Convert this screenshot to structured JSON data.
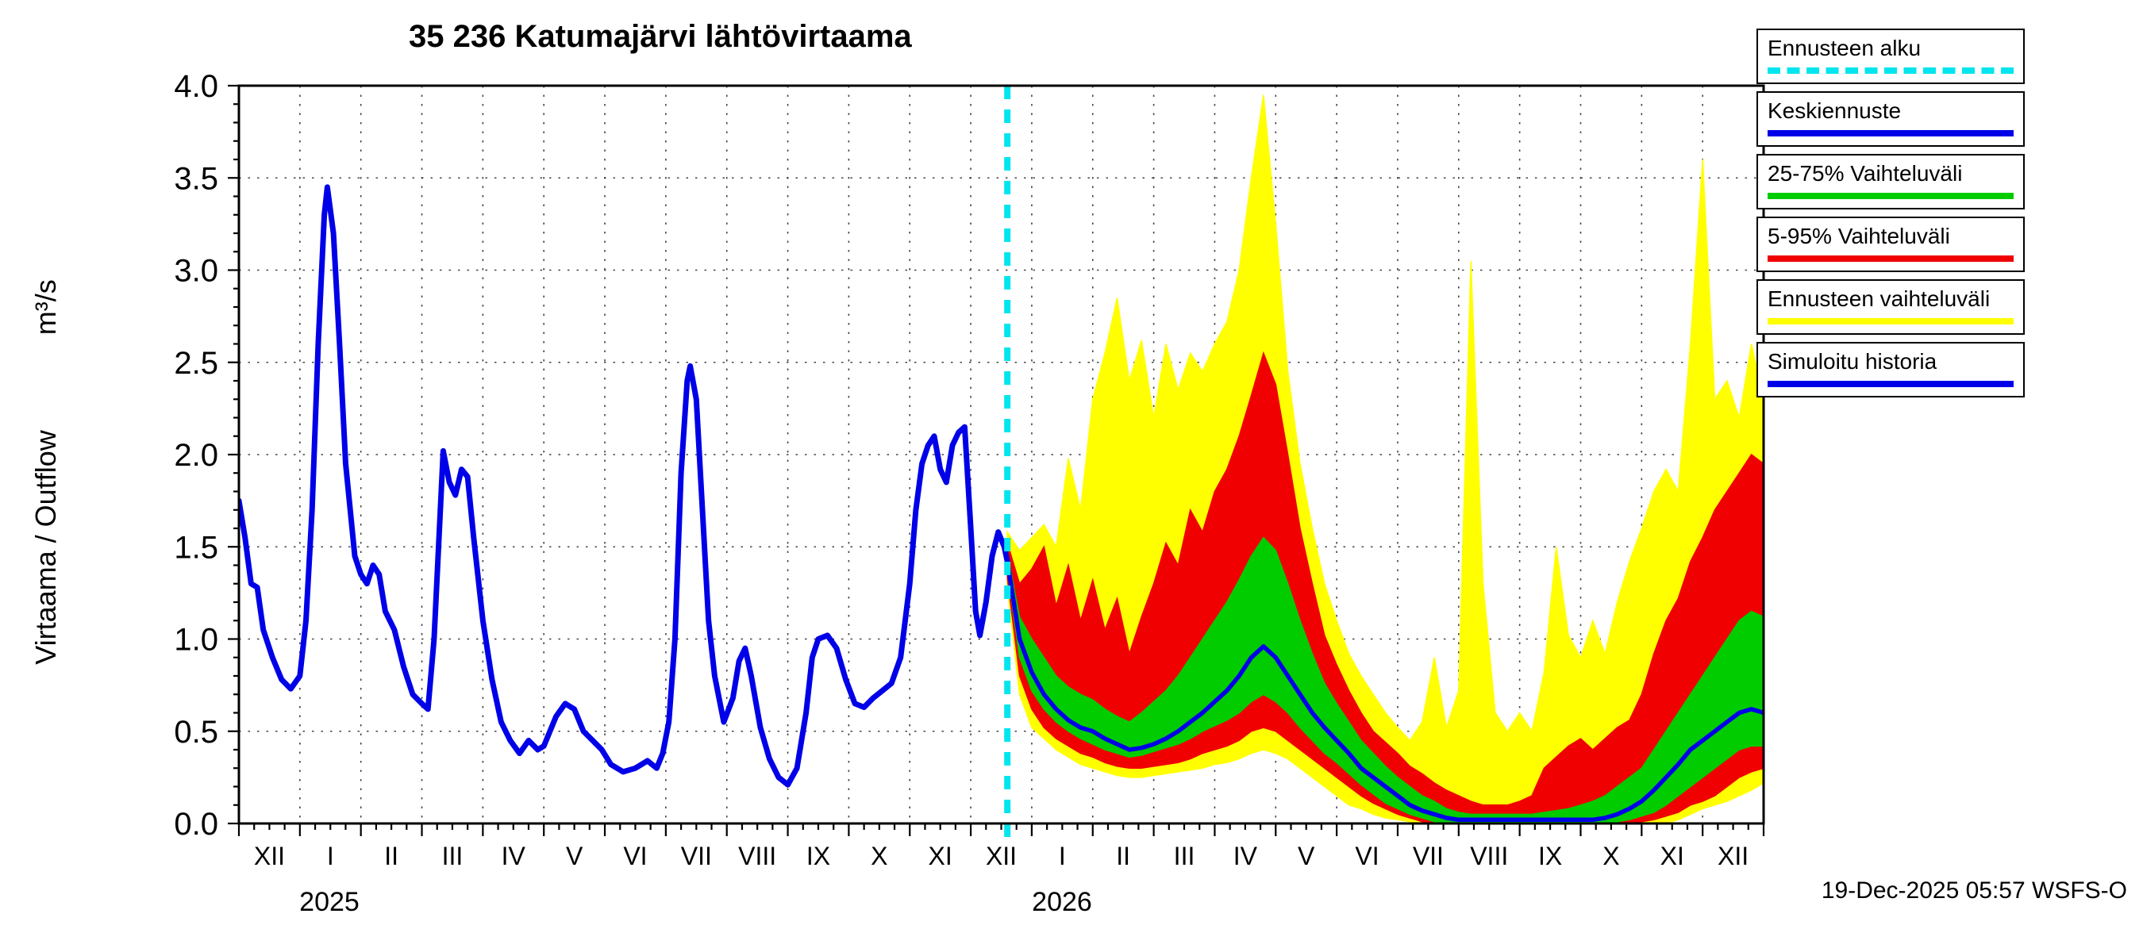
{
  "title": "35 236 Katumajärvi lähtövirtaama",
  "y_axis": {
    "label": "Virtaama / Outflow",
    "unit": "m³/s"
  },
  "years": [
    "2025",
    "2026"
  ],
  "timestamp": "19-Dec-2025 05:57 WSFS-O",
  "legend": {
    "items": [
      {
        "label": "Ennusteen alku",
        "color": "#00e5ee",
        "style": "dashed"
      },
      {
        "label": "Keskiennuste",
        "color": "#0000e8",
        "style": "solid"
      },
      {
        "label": "25-75% Vaihteluväli",
        "color": "#00cc00",
        "style": "solid"
      },
      {
        "label": "5-95% Vaihteluväli",
        "color": "#f00000",
        "style": "solid"
      },
      {
        "label": "Ennusteen vaihteluväli",
        "color": "#ffff00",
        "style": "solid"
      },
      {
        "label": "Simuloitu historia",
        "color": "#0000e8",
        "style": "solid"
      }
    ]
  },
  "chart_data": {
    "type": "line",
    "title": "35 236 Katumajärvi lähtövirtaama",
    "xlabel": "",
    "ylabel": "Virtaama / Outflow (m³/s)",
    "x_unit": "months since 2024-12-01",
    "xlim": [
      0,
      25
    ],
    "ylim": [
      0,
      4
    ],
    "grid": true,
    "legend_position": "top-right",
    "forecast_start_x": 12.6,
    "x_tick_labels": [
      "XII",
      "I",
      "II",
      "III",
      "IV",
      "V",
      "VI",
      "VII",
      "VIII",
      "IX",
      "X",
      "XI",
      "XII",
      "I",
      "II",
      "III",
      "IV",
      "V",
      "VI",
      "VII",
      "VIII",
      "IX",
      "X",
      "XI",
      "XII"
    ],
    "y_ticks": [
      0.0,
      0.5,
      1.0,
      1.5,
      2.0,
      2.5,
      3.0,
      3.5,
      4.0
    ],
    "colors": {
      "history": "#0000e8",
      "median": "#0000e8",
      "band_25_75": "#00cc00",
      "band_5_95": "#f00000",
      "band_full": "#ffff00",
      "forecast_start": "#00e5ee"
    },
    "history": {
      "name": "Simuloitu historia",
      "x": [
        0.0,
        0.1,
        0.2,
        0.3,
        0.4,
        0.55,
        0.7,
        0.85,
        1.0,
        1.1,
        1.2,
        1.3,
        1.4,
        1.45,
        1.55,
        1.65,
        1.75,
        1.9,
        2.0,
        2.1,
        2.2,
        2.3,
        2.4,
        2.55,
        2.7,
        2.85,
        3.0,
        3.1,
        3.2,
        3.35,
        3.45,
        3.55,
        3.65,
        3.75,
        3.85,
        4.0,
        4.15,
        4.3,
        4.45,
        4.6,
        4.75,
        4.9,
        5.0,
        5.2,
        5.35,
        5.5,
        5.65,
        5.8,
        5.95,
        6.1,
        6.3,
        6.5,
        6.7,
        6.85,
        6.95,
        7.05,
        7.15,
        7.25,
        7.35,
        7.4,
        7.5,
        7.6,
        7.7,
        7.8,
        7.95,
        8.1,
        8.2,
        8.3,
        8.4,
        8.55,
        8.7,
        8.85,
        9.0,
        9.15,
        9.3,
        9.4,
        9.5,
        9.65,
        9.8,
        9.95,
        10.1,
        10.25,
        10.4,
        10.55,
        10.7,
        10.85,
        11.0,
        11.1,
        11.2,
        11.3,
        11.4,
        11.5,
        11.6,
        11.7,
        11.8,
        11.9,
        12.0,
        12.08,
        12.15,
        12.25,
        12.35,
        12.45,
        12.55,
        12.6
      ],
      "y": [
        1.75,
        1.55,
        1.3,
        1.28,
        1.05,
        0.9,
        0.78,
        0.73,
        0.8,
        1.1,
        1.7,
        2.6,
        3.3,
        3.45,
        3.2,
        2.6,
        1.95,
        1.45,
        1.35,
        1.3,
        1.4,
        1.35,
        1.15,
        1.05,
        0.85,
        0.7,
        0.65,
        0.62,
        1.0,
        2.02,
        1.85,
        1.78,
        1.92,
        1.88,
        1.55,
        1.1,
        0.78,
        0.55,
        0.45,
        0.38,
        0.45,
        0.4,
        0.42,
        0.58,
        0.65,
        0.62,
        0.5,
        0.45,
        0.4,
        0.32,
        0.28,
        0.3,
        0.34,
        0.3,
        0.38,
        0.55,
        1.0,
        1.9,
        2.4,
        2.48,
        2.3,
        1.7,
        1.1,
        0.8,
        0.55,
        0.68,
        0.88,
        0.95,
        0.8,
        0.52,
        0.35,
        0.25,
        0.21,
        0.3,
        0.6,
        0.9,
        1.0,
        1.02,
        0.95,
        0.78,
        0.65,
        0.63,
        0.68,
        0.72,
        0.76,
        0.9,
        1.3,
        1.7,
        1.95,
        2.05,
        2.1,
        1.92,
        1.85,
        2.05,
        2.12,
        2.15,
        1.6,
        1.15,
        1.02,
        1.2,
        1.45,
        1.58,
        1.5,
        1.42
      ]
    },
    "forecast": {
      "x": [
        12.6,
        12.8,
        13.0,
        13.2,
        13.4,
        13.6,
        13.8,
        14.0,
        14.2,
        14.4,
        14.6,
        14.8,
        15.0,
        15.2,
        15.4,
        15.6,
        15.8,
        16.0,
        16.2,
        16.4,
        16.6,
        16.8,
        17.0,
        17.2,
        17.4,
        17.6,
        17.8,
        18.0,
        18.2,
        18.4,
        18.6,
        18.8,
        19.0,
        19.2,
        19.4,
        19.6,
        19.8,
        20.0,
        20.2,
        20.4,
        20.6,
        20.8,
        21.0,
        21.2,
        21.4,
        21.6,
        21.8,
        22.0,
        22.2,
        22.4,
        22.6,
        22.8,
        23.0,
        23.2,
        23.4,
        23.6,
        23.8,
        24.0,
        24.2,
        24.4,
        24.6,
        24.8,
        25.0
      ],
      "median": [
        1.42,
        1.0,
        0.82,
        0.7,
        0.62,
        0.56,
        0.52,
        0.5,
        0.46,
        0.43,
        0.4,
        0.41,
        0.43,
        0.46,
        0.5,
        0.55,
        0.6,
        0.66,
        0.72,
        0.8,
        0.9,
        0.96,
        0.9,
        0.8,
        0.7,
        0.6,
        0.52,
        0.45,
        0.38,
        0.3,
        0.25,
        0.2,
        0.15,
        0.1,
        0.07,
        0.05,
        0.03,
        0.02,
        0.02,
        0.02,
        0.02,
        0.02,
        0.02,
        0.02,
        0.02,
        0.02,
        0.02,
        0.02,
        0.02,
        0.03,
        0.05,
        0.08,
        0.12,
        0.18,
        0.25,
        0.32,
        0.4,
        0.45,
        0.5,
        0.55,
        0.6,
        0.62,
        0.6
      ],
      "p25": [
        1.38,
        0.9,
        0.72,
        0.62,
        0.55,
        0.5,
        0.46,
        0.43,
        0.4,
        0.38,
        0.36,
        0.37,
        0.39,
        0.41,
        0.43,
        0.46,
        0.5,
        0.53,
        0.56,
        0.6,
        0.66,
        0.7,
        0.66,
        0.6,
        0.52,
        0.45,
        0.38,
        0.33,
        0.27,
        0.21,
        0.16,
        0.11,
        0.08,
        0.05,
        0.03,
        0.01,
        0.0,
        0.0,
        0.0,
        0.0,
        0.0,
        0.0,
        0.0,
        0.0,
        0.0,
        0.0,
        0.0,
        0.0,
        0.0,
        0.0,
        0.01,
        0.02,
        0.04,
        0.06,
        0.1,
        0.15,
        0.2,
        0.25,
        0.3,
        0.35,
        0.4,
        0.42,
        0.42
      ],
      "p75": [
        1.46,
        1.12,
        1.0,
        0.9,
        0.8,
        0.74,
        0.7,
        0.67,
        0.62,
        0.58,
        0.55,
        0.6,
        0.66,
        0.72,
        0.8,
        0.9,
        1.0,
        1.1,
        1.2,
        1.32,
        1.45,
        1.55,
        1.48,
        1.3,
        1.1,
        0.92,
        0.76,
        0.65,
        0.55,
        0.45,
        0.38,
        0.31,
        0.25,
        0.2,
        0.15,
        0.12,
        0.08,
        0.06,
        0.05,
        0.05,
        0.05,
        0.05,
        0.05,
        0.05,
        0.06,
        0.07,
        0.08,
        0.1,
        0.12,
        0.15,
        0.2,
        0.25,
        0.3,
        0.4,
        0.5,
        0.6,
        0.7,
        0.8,
        0.9,
        1.0,
        1.1,
        1.15,
        1.12
      ],
      "p5": [
        1.33,
        0.8,
        0.62,
        0.52,
        0.46,
        0.42,
        0.38,
        0.36,
        0.33,
        0.31,
        0.3,
        0.3,
        0.31,
        0.32,
        0.33,
        0.35,
        0.38,
        0.4,
        0.42,
        0.45,
        0.5,
        0.52,
        0.5,
        0.45,
        0.4,
        0.35,
        0.3,
        0.25,
        0.2,
        0.15,
        0.11,
        0.08,
        0.05,
        0.03,
        0.01,
        0.0,
        0.0,
        0.0,
        0.0,
        0.0,
        0.0,
        0.0,
        0.0,
        0.0,
        0.0,
        0.0,
        0.0,
        0.0,
        0.0,
        0.0,
        0.0,
        0.0,
        0.01,
        0.02,
        0.04,
        0.06,
        0.1,
        0.12,
        0.15,
        0.2,
        0.25,
        0.28,
        0.3
      ],
      "p95": [
        1.52,
        1.3,
        1.38,
        1.5,
        1.18,
        1.4,
        1.1,
        1.32,
        1.05,
        1.22,
        0.92,
        1.12,
        1.3,
        1.52,
        1.4,
        1.7,
        1.58,
        1.8,
        1.92,
        2.1,
        2.32,
        2.55,
        2.38,
        2.0,
        1.6,
        1.3,
        1.02,
        0.86,
        0.72,
        0.6,
        0.5,
        0.44,
        0.38,
        0.31,
        0.27,
        0.22,
        0.18,
        0.15,
        0.12,
        0.1,
        0.1,
        0.1,
        0.12,
        0.15,
        0.3,
        0.36,
        0.42,
        0.46,
        0.4,
        0.46,
        0.52,
        0.56,
        0.7,
        0.92,
        1.1,
        1.22,
        1.42,
        1.55,
        1.7,
        1.8,
        1.9,
        2.0,
        1.95
      ],
      "min": [
        1.28,
        0.7,
        0.52,
        0.46,
        0.4,
        0.36,
        0.32,
        0.3,
        0.28,
        0.26,
        0.25,
        0.25,
        0.26,
        0.27,
        0.28,
        0.29,
        0.3,
        0.32,
        0.33,
        0.35,
        0.38,
        0.4,
        0.38,
        0.35,
        0.3,
        0.25,
        0.2,
        0.15,
        0.1,
        0.08,
        0.05,
        0.03,
        0.02,
        0.01,
        0.0,
        0.0,
        0.0,
        0.0,
        0.0,
        0.0,
        0.0,
        0.0,
        0.0,
        0.0,
        0.0,
        0.0,
        0.0,
        0.0,
        0.0,
        0.0,
        0.0,
        0.0,
        0.0,
        0.0,
        0.0,
        0.02,
        0.05,
        0.08,
        0.1,
        0.12,
        0.15,
        0.18,
        0.22
      ],
      "max": [
        1.58,
        1.48,
        1.55,
        1.62,
        1.5,
        1.98,
        1.7,
        2.3,
        2.55,
        2.85,
        2.4,
        2.62,
        2.2,
        2.6,
        2.35,
        2.55,
        2.45,
        2.6,
        2.72,
        3.0,
        3.5,
        3.95,
        3.25,
        2.45,
        1.95,
        1.6,
        1.3,
        1.1,
        0.92,
        0.8,
        0.7,
        0.6,
        0.52,
        0.45,
        0.55,
        0.9,
        0.52,
        0.72,
        3.05,
        1.3,
        0.6,
        0.5,
        0.6,
        0.5,
        0.82,
        1.5,
        1.02,
        0.9,
        1.1,
        0.92,
        1.2,
        1.42,
        1.6,
        1.8,
        1.92,
        1.8,
        2.6,
        3.6,
        2.3,
        2.4,
        2.2,
        2.6,
        2.3
      ]
    }
  }
}
